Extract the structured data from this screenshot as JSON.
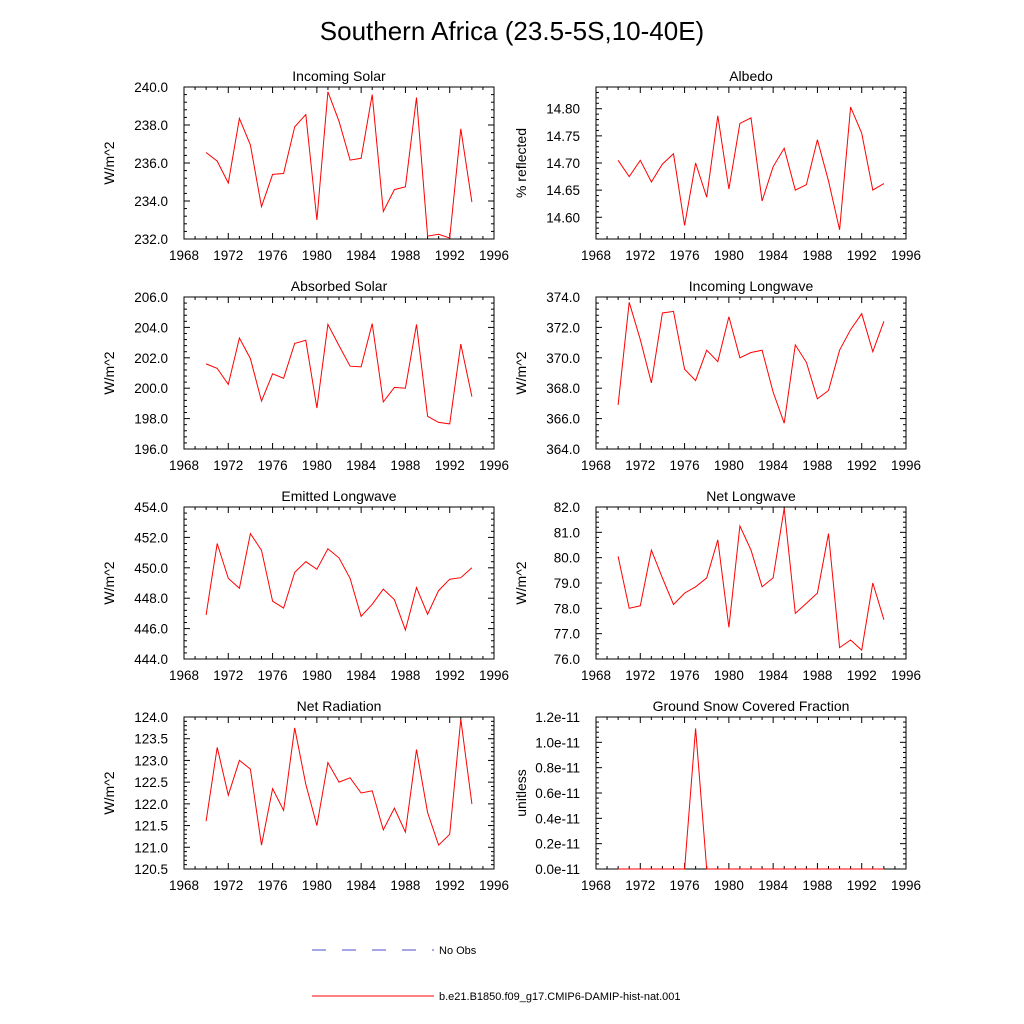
{
  "title": "Southern Africa (23.5-5S,10-40E)",
  "colors": {
    "model": "#ff0000",
    "obs": "#4d4dcc",
    "axis": "#000000"
  },
  "legend": {
    "obs_label": "No Obs",
    "model_label": "b.e21.B1850.f09_g17.CMIP6-DAMIP-hist-nat.001"
  },
  "chart_data": [
    {
      "type": "line",
      "title": "Incoming Solar",
      "ylabel": "W/m^2",
      "xlim": [
        1968,
        1996
      ],
      "xticks": [
        1968,
        1972,
        1976,
        1980,
        1984,
        1988,
        1992,
        1996
      ],
      "ylim": [
        232,
        240
      ],
      "yticks": [
        232,
        234,
        236,
        238,
        240
      ],
      "ytick_labels": [
        "232.0",
        "234.0",
        "236.0",
        "238.0",
        "240.0"
      ],
      "series": [
        {
          "x": [
            1970,
            1971,
            1972,
            1973,
            1974,
            1975,
            1976,
            1977,
            1978,
            1979,
            1980,
            1981,
            1982,
            1983,
            1984,
            1985,
            1986,
            1987,
            1988,
            1989,
            1990,
            1991,
            1992,
            1993,
            1994
          ],
          "values": [
            236.55,
            236.1,
            234.95,
            238.35,
            236.95,
            233.7,
            235.4,
            235.45,
            237.9,
            238.55,
            233.0,
            239.75,
            238.2,
            236.15,
            236.25,
            239.6,
            233.45,
            234.6,
            234.75,
            239.45,
            232.15,
            232.25,
            232.05,
            237.8,
            233.95
          ]
        }
      ]
    },
    {
      "type": "line",
      "title": "Albedo",
      "ylabel": "% reflected",
      "xlim": [
        1968,
        1996
      ],
      "xticks": [
        1968,
        1972,
        1976,
        1980,
        1984,
        1988,
        1992,
        1996
      ],
      "ylim": [
        14.56,
        14.84
      ],
      "yticks": [
        14.6,
        14.65,
        14.7,
        14.75,
        14.8
      ],
      "ytick_labels": [
        "14.60",
        "14.65",
        "14.70",
        "14.75",
        "14.80"
      ],
      "series": [
        {
          "x": [
            1970,
            1971,
            1972,
            1973,
            1974,
            1975,
            1976,
            1977,
            1978,
            1979,
            1980,
            1981,
            1982,
            1983,
            1984,
            1985,
            1986,
            1987,
            1988,
            1989,
            1990,
            1991,
            1992,
            1993,
            1994
          ],
          "values": [
            14.705,
            14.675,
            14.705,
            14.665,
            14.698,
            14.717,
            14.585,
            14.7,
            14.637,
            14.787,
            14.652,
            14.773,
            14.783,
            14.63,
            14.693,
            14.727,
            14.65,
            14.66,
            14.743,
            14.667,
            14.577,
            14.803,
            14.755,
            14.65,
            14.662
          ]
        }
      ]
    },
    {
      "type": "line",
      "title": "Absorbed Solar",
      "ylabel": "W/m^2",
      "xlim": [
        1968,
        1996
      ],
      "xticks": [
        1968,
        1972,
        1976,
        1980,
        1984,
        1988,
        1992,
        1996
      ],
      "ylim": [
        196,
        206
      ],
      "yticks": [
        196,
        198,
        200,
        202,
        204,
        206
      ],
      "ytick_labels": [
        "196.0",
        "198.0",
        "200.0",
        "202.0",
        "204.0",
        "206.0"
      ],
      "series": [
        {
          "x": [
            1970,
            1971,
            1972,
            1973,
            1974,
            1975,
            1976,
            1977,
            1978,
            1979,
            1980,
            1981,
            1982,
            1983,
            1984,
            1985,
            1986,
            1987,
            1988,
            1989,
            1990,
            1991,
            1992,
            1993,
            1994
          ],
          "values": [
            201.6,
            201.3,
            200.25,
            203.3,
            201.95,
            199.15,
            200.95,
            200.65,
            202.95,
            203.15,
            198.7,
            204.2,
            202.8,
            201.45,
            201.4,
            204.25,
            199.1,
            200.05,
            200.0,
            204.2,
            198.15,
            197.75,
            197.65,
            202.9,
            199.45
          ]
        }
      ]
    },
    {
      "type": "line",
      "title": "Incoming Longwave",
      "ylabel": "W/m^2",
      "xlim": [
        1968,
        1996
      ],
      "xticks": [
        1968,
        1972,
        1976,
        1980,
        1984,
        1988,
        1992,
        1996
      ],
      "ylim": [
        364,
        374
      ],
      "yticks": [
        364,
        366,
        368,
        370,
        372,
        374
      ],
      "ytick_labels": [
        "364.0",
        "366.0",
        "368.0",
        "370.0",
        "372.0",
        "374.0"
      ],
      "series": [
        {
          "x": [
            1970,
            1971,
            1972,
            1973,
            1974,
            1975,
            1976,
            1977,
            1978,
            1979,
            1980,
            1981,
            1982,
            1983,
            1984,
            1985,
            1986,
            1987,
            1988,
            1989,
            1990,
            1991,
            1992,
            1993,
            1994
          ],
          "values": [
            366.9,
            373.65,
            371.2,
            368.35,
            372.95,
            373.05,
            369.25,
            368.5,
            370.5,
            369.75,
            372.7,
            370.0,
            370.35,
            370.5,
            367.75,
            365.7,
            370.85,
            369.7,
            367.3,
            367.85,
            370.5,
            371.85,
            372.9,
            370.4,
            372.4
          ]
        }
      ]
    },
    {
      "type": "line",
      "title": "Emitted Longwave",
      "ylabel": "W/m^2",
      "xlim": [
        1968,
        1996
      ],
      "xticks": [
        1968,
        1972,
        1976,
        1980,
        1984,
        1988,
        1992,
        1996
      ],
      "ylim": [
        444,
        454
      ],
      "yticks": [
        444,
        446,
        448,
        450,
        452,
        454
      ],
      "ytick_labels": [
        "444.0",
        "446.0",
        "448.0",
        "450.0",
        "452.0",
        "454.0"
      ],
      "series": [
        {
          "x": [
            1970,
            1971,
            1972,
            1973,
            1974,
            1975,
            1976,
            1977,
            1978,
            1979,
            1980,
            1981,
            1982,
            1983,
            1984,
            1985,
            1986,
            1987,
            1988,
            1989,
            1990,
            1991,
            1992,
            1993,
            1994
          ],
          "values": [
            446.9,
            451.6,
            449.3,
            448.65,
            452.25,
            451.15,
            447.8,
            447.35,
            449.7,
            450.4,
            449.9,
            451.25,
            450.65,
            449.3,
            446.8,
            447.6,
            448.6,
            447.9,
            445.9,
            448.7,
            446.95,
            448.5,
            449.25,
            449.35,
            450.0
          ]
        }
      ]
    },
    {
      "type": "line",
      "title": "Net Longwave",
      "ylabel": "W/m^2",
      "xlim": [
        1968,
        1996
      ],
      "xticks": [
        1968,
        1972,
        1976,
        1980,
        1984,
        1988,
        1992,
        1996
      ],
      "ylim": [
        76,
        82
      ],
      "yticks": [
        76,
        77,
        78,
        79,
        80,
        81,
        82
      ],
      "ytick_labels": [
        "76.0",
        "77.0",
        "78.0",
        "79.0",
        "80.0",
        "81.0",
        "82.0"
      ],
      "series": [
        {
          "x": [
            1970,
            1971,
            1972,
            1973,
            1974,
            1975,
            1976,
            1977,
            1978,
            1979,
            1980,
            1981,
            1982,
            1983,
            1984,
            1985,
            1986,
            1987,
            1988,
            1989,
            1990,
            1991,
            1992,
            1993,
            1994
          ],
          "values": [
            80.05,
            78.0,
            78.1,
            80.3,
            79.2,
            78.15,
            78.6,
            78.85,
            79.2,
            80.7,
            77.25,
            81.25,
            80.3,
            78.85,
            79.2,
            81.95,
            77.8,
            78.2,
            78.6,
            80.95,
            76.45,
            76.75,
            76.35,
            79.0,
            77.55
          ]
        }
      ]
    },
    {
      "type": "line",
      "title": "Net Radiation",
      "ylabel": "W/m^2",
      "xlim": [
        1968,
        1996
      ],
      "xticks": [
        1968,
        1972,
        1976,
        1980,
        1984,
        1988,
        1992,
        1996
      ],
      "ylim": [
        120.5,
        124
      ],
      "yticks": [
        120.5,
        121,
        121.5,
        122,
        122.5,
        123,
        123.5,
        124
      ],
      "ytick_labels": [
        "120.5",
        "121.0",
        "121.5",
        "122.0",
        "122.5",
        "123.0",
        "123.5",
        "124.0"
      ],
      "series": [
        {
          "x": [
            1970,
            1971,
            1972,
            1973,
            1974,
            1975,
            1976,
            1977,
            1978,
            1979,
            1980,
            1981,
            1982,
            1983,
            1984,
            1985,
            1986,
            1987,
            1988,
            1989,
            1990,
            1991,
            1992,
            1993,
            1994
          ],
          "values": [
            121.6,
            123.3,
            122.2,
            123.0,
            122.8,
            121.05,
            122.35,
            121.85,
            123.75,
            122.45,
            121.5,
            122.95,
            122.5,
            122.6,
            122.25,
            122.3,
            121.4,
            121.9,
            121.35,
            123.25,
            121.8,
            121.05,
            121.3,
            123.95,
            122.0
          ]
        }
      ]
    },
    {
      "type": "line",
      "title": "Ground Snow Covered Fraction",
      "ylabel": "unitless",
      "xlim": [
        1968,
        1996
      ],
      "xticks": [
        1968,
        1972,
        1976,
        1980,
        1984,
        1988,
        1992,
        1996
      ],
      "ylim": [
        0,
        1.2e-11
      ],
      "yticks": [
        0,
        2e-12,
        4e-12,
        6e-12,
        8e-12,
        1e-11,
        1.2e-11
      ],
      "ytick_labels": [
        "0.0e-11",
        "0.2e-11",
        "0.4e-11",
        "0.6e-11",
        "0.8e-11",
        "1.0e-11",
        "1.2e-11"
      ],
      "series": [
        {
          "x": [
            1970,
            1971,
            1972,
            1973,
            1974,
            1975,
            1976,
            1977,
            1978,
            1979,
            1980,
            1981,
            1982,
            1983,
            1984,
            1985,
            1986,
            1987,
            1988,
            1989,
            1990,
            1991,
            1992,
            1993,
            1994
          ],
          "values": [
            0,
            0,
            0,
            0,
            0,
            0,
            0,
            1.11e-11,
            0,
            0,
            0,
            0,
            0,
            0,
            0,
            0,
            0,
            0,
            0,
            0,
            0,
            0,
            0,
            0,
            0
          ]
        }
      ]
    }
  ]
}
